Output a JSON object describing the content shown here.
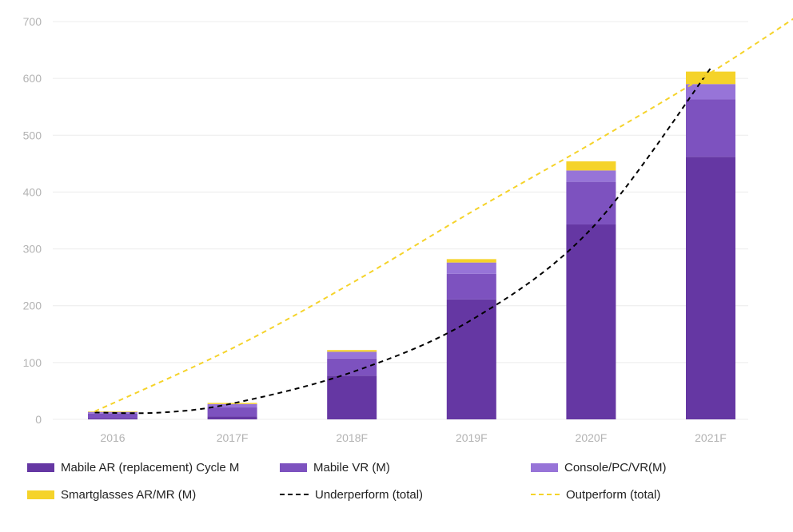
{
  "chart_data": {
    "type": "bar",
    "stacked": true,
    "categories": [
      "2016",
      "2017F",
      "2018F",
      "2019F",
      "2020F",
      "2021F"
    ],
    "ylim": [
      0,
      700
    ],
    "yticks": [
      0,
      100,
      200,
      300,
      400,
      500,
      600,
      700
    ],
    "grid": true,
    "legend_position": "bottom",
    "series": [
      {
        "name": "Mabile AR (replacement) Cycle M",
        "color": "#6537a3",
        "values": [
          2,
          5,
          77,
          211,
          343,
          462
        ]
      },
      {
        "name": "Mabile VR (M)",
        "color": "#7d52bf",
        "values": [
          8,
          16,
          30,
          45,
          75,
          101
        ]
      },
      {
        "name": "Console/PC/VR(M)",
        "color": "#9774d8",
        "values": [
          3,
          6,
          12,
          20,
          20,
          27
        ]
      },
      {
        "name": "Smartglasses AR/MR (M)",
        "color": "#f5d32a",
        "values": [
          1,
          2,
          3,
          6,
          16,
          22
        ]
      }
    ],
    "lines": [
      {
        "name": "Underperform (total)",
        "color": "#000000",
        "style": "dashed",
        "x": [
          -0.15,
          0.4,
          1,
          2,
          3,
          4,
          5
        ],
        "values": [
          12,
          12,
          28,
          83,
          175,
          335,
          618
        ]
      },
      {
        "name": "Outperform (total)",
        "color": "#f5d32a",
        "style": "dashed",
        "x": [
          -0.15,
          1,
          2,
          3,
          4,
          5,
          5.8
        ],
        "values": [
          14,
          125,
          240,
          365,
          485,
          610,
          720
        ]
      }
    ]
  },
  "legend": {
    "items": [
      {
        "label": "Mabile AR (replacement) Cycle M",
        "color": "#6537a3",
        "kind": "swatch"
      },
      {
        "label": "Mabile VR (M)",
        "color": "#7d52bf",
        "kind": "swatch"
      },
      {
        "label": "Console/PC/VR(M)",
        "color": "#9774d8",
        "kind": "swatch"
      },
      {
        "label": "Smartglasses AR/MR (M)",
        "color": "#f5d32a",
        "kind": "swatch"
      },
      {
        "label": "Underperform (total)",
        "color": "#000000",
        "kind": "dash"
      },
      {
        "label": "Outperform (total)",
        "color": "#f5d32a",
        "kind": "dash"
      }
    ]
  }
}
